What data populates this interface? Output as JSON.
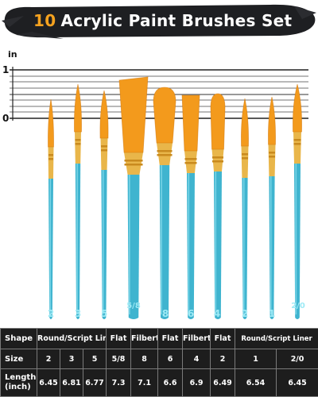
{
  "banner": {
    "count": "10",
    "title": "Acrylic Paint Brushes Set"
  },
  "ruler": {
    "unit": "in",
    "label_top": "1",
    "label_bottom": "0"
  },
  "brushes": [
    {
      "size": "2"
    },
    {
      "size": "3"
    },
    {
      "size": "5"
    },
    {
      "size": "5/8"
    },
    {
      "size": "8"
    },
    {
      "size": "6"
    },
    {
      "size": "4"
    },
    {
      "size": "2"
    },
    {
      "size": "1"
    },
    {
      "size": "2/0"
    }
  ],
  "spec_table": {
    "headers": {
      "shape": "Shape",
      "size": "Size",
      "length": "Length (inch)",
      "length_l1": "Length",
      "length_l2": "(inch)"
    },
    "shapes": [
      {
        "label": "Round/Script Liner",
        "span": 3
      },
      {
        "label": "Flat",
        "span": 1
      },
      {
        "label": "Filbert",
        "span": 1
      },
      {
        "label": "Flat",
        "span": 1
      },
      {
        "label": "Filbert",
        "span": 1
      },
      {
        "label": "Flat",
        "span": 1
      },
      {
        "label": "Round/Script Liner",
        "span": 2
      }
    ],
    "sizes": [
      "2",
      "3",
      "5",
      "5/8",
      "8",
      "6",
      "4",
      "2",
      "1",
      "2/0"
    ],
    "lengths": [
      "6.45",
      "6.81",
      "6.77",
      "7.3",
      "7.1",
      "6.6",
      "6.9",
      "6.49",
      "6.54",
      "6.45"
    ]
  },
  "colors": {
    "banner_bg": "#1e1f22",
    "banner_accent": "#f5a21f",
    "bristle": "#f39a1c",
    "ferrule": "#e9b64a",
    "handle": "#3fb4cf",
    "table_bg": "#1d1d1d"
  }
}
